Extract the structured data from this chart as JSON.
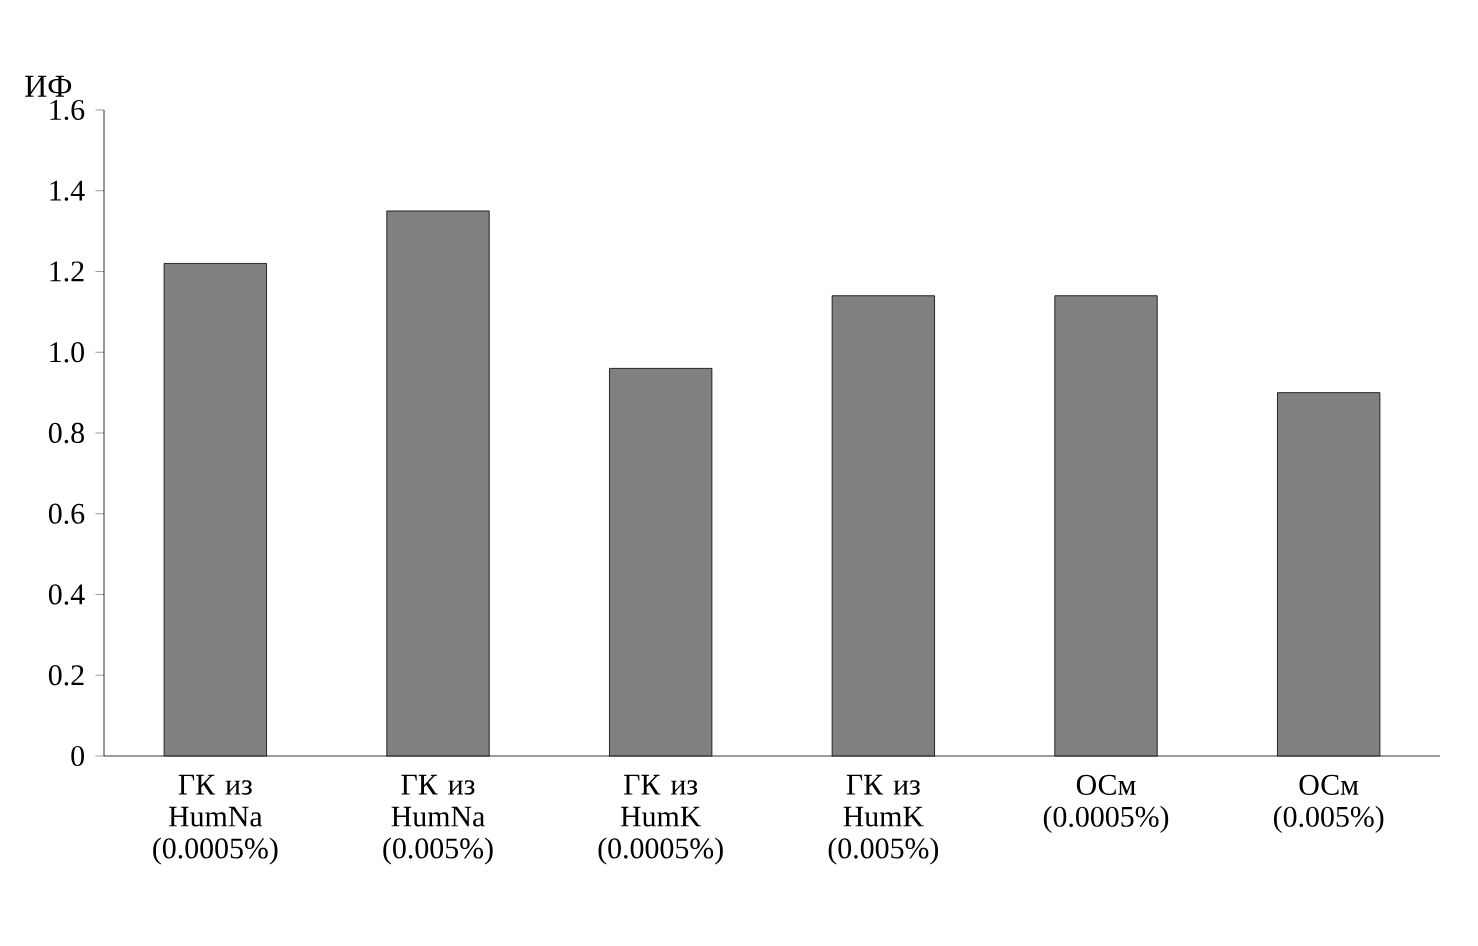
{
  "chart_data": {
    "type": "bar",
    "ylabel": "ИФ",
    "categories": [
      "ГК из HumNa (0.0005%)",
      "ГК из HumNa (0.005%)",
      "ГК из HumK (0.0005%)",
      "ГК из HumK (0.005%)",
      "ОСм (0.0005%)",
      "ОСм (0.005%)"
    ],
    "values": [
      1.22,
      1.35,
      0.96,
      1.14,
      1.14,
      0.9
    ],
    "color": "#808080",
    "ylim": [
      0,
      1.6
    ],
    "yticks": [
      0,
      0.2,
      0.4,
      0.6,
      0.8,
      {
        "value": 1.0,
        "label": "1.0"
      },
      1.2,
      1.4,
      1.6
    ],
    "grid": false
  }
}
